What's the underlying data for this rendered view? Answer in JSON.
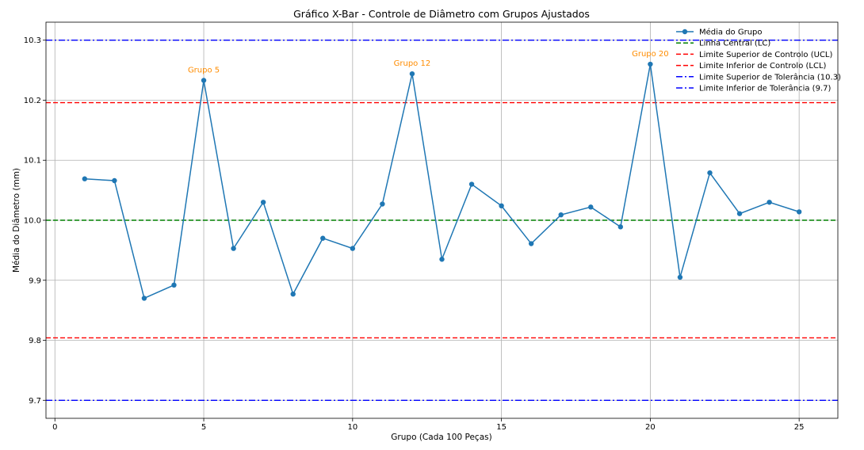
{
  "chart_data": {
    "type": "line",
    "title": "Gráfico X-Bar - Controle de Diâmetro com Grupos Ajustados",
    "xlabel": "Grupo (Cada 100 Peças)",
    "ylabel": "Média do Diâmetro (mm)",
    "xlim": [
      -0.3,
      26.3
    ],
    "ylim": [
      9.67,
      10.33
    ],
    "xticks": [
      0,
      5,
      10,
      15,
      20,
      25
    ],
    "yticks": [
      9.7,
      9.8,
      9.9,
      10.0,
      10.1,
      10.2,
      10.3
    ],
    "ytick_labels": [
      "9.7",
      "9.8",
      "9.9",
      "10.0",
      "10.1",
      "10.2",
      "10.3"
    ],
    "grid": true,
    "legend_position": "top-right",
    "series": [
      {
        "name": "Média do Grupo",
        "color": "#1f77b4",
        "x": [
          1,
          2,
          3,
          4,
          5,
          6,
          7,
          8,
          9,
          10,
          11,
          12,
          13,
          14,
          15,
          16,
          17,
          18,
          19,
          20,
          21,
          22,
          23,
          24,
          25
        ],
        "values": [
          10.069,
          10.066,
          9.87,
          9.892,
          10.233,
          9.953,
          10.03,
          9.877,
          9.97,
          9.953,
          10.027,
          10.244,
          9.935,
          10.06,
          10.024,
          9.961,
          10.009,
          10.022,
          9.989,
          10.26,
          9.905,
          10.079,
          10.011,
          10.03,
          10.014
        ]
      }
    ],
    "reference_lines": [
      {
        "name": "Linha Central (LC)",
        "value": 10.0,
        "color": "#008000",
        "style": "dashed"
      },
      {
        "name": "Limite Superior de Controlo (UCL)",
        "value": 10.196,
        "color": "#ff0000",
        "style": "dashed"
      },
      {
        "name": "Limite Inferior de Controlo (LCL)",
        "value": 9.804,
        "color": "#ff0000",
        "style": "dashed"
      },
      {
        "name": "Limite Superior de Tolerância (10.3)",
        "value": 10.3,
        "color": "#0000ff",
        "style": "dashdot"
      },
      {
        "name": "Limite Inferior de Tolerância (9.7)",
        "value": 9.7,
        "color": "#0000ff",
        "style": "dashdot"
      }
    ],
    "annotations": [
      {
        "text": "Grupo 5",
        "x": 5,
        "y": 10.233,
        "color": "#ff8c00"
      },
      {
        "text": "Grupo 12",
        "x": 12,
        "y": 10.244,
        "color": "#ff8c00"
      },
      {
        "text": "Grupo 20",
        "x": 20,
        "y": 10.26,
        "color": "#ff8c00"
      }
    ]
  }
}
